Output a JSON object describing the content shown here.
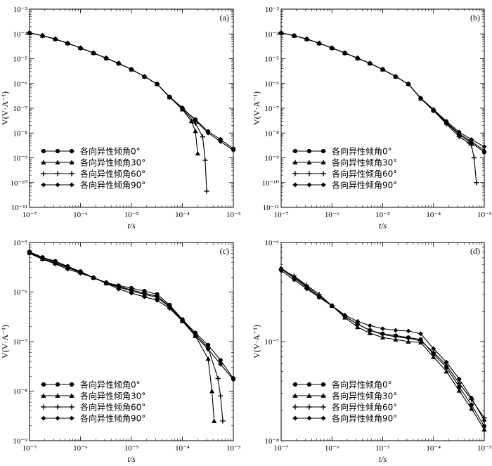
{
  "chart_data": [
    {
      "type": "line",
      "panel_label": "(a)",
      "xlabel": "t/s",
      "ylabel": "V(V·A⁻¹)",
      "xscale": "log",
      "yscale": "log",
      "xlim": [
        1e-07,
        0.001
      ],
      "ylim": [
        1e-11,
        0.001
      ],
      "x_ticks": [
        "10⁻⁷",
        "10⁻⁶",
        "10⁻⁵",
        "10⁻⁴",
        "10⁻³"
      ],
      "y_ticks": [
        "10⁻¹¹",
        "10⁻¹⁰",
        "10⁻⁹",
        "10⁻⁸",
        "10⁻⁷",
        "10⁻⁶",
        "10⁻⁵",
        "10⁻⁴",
        "10⁻³"
      ],
      "legend_position": "bottom-left",
      "series": [
        {
          "name": "各向异性倾角0°",
          "marker": "circle",
          "x": [
            1e-07,
            1.8e-07,
            3.2e-07,
            5.6e-07,
            1e-06,
            1.8e-06,
            3.2e-06,
            5.6e-06,
            1e-05,
            1.8e-05,
            3.2e-05,
            5.6e-05,
            0.0001,
            0.00018,
            0.00032,
            0.00056,
            0.001
          ],
          "y": [
            0.00011,
            8.5e-05,
            6.2e-05,
            4.2e-05,
            2.7e-05,
            1.7e-05,
            1.05e-05,
            6.5e-06,
            3.7e-06,
            1.9e-06,
            9.5e-07,
            2.9e-07,
            1e-07,
            3.5e-08,
            1.15e-08,
            5.5e-09,
            2.3e-09
          ]
        },
        {
          "name": "各向异性倾角30°",
          "marker": "triangle",
          "x": [
            1e-07,
            1.8e-07,
            3.2e-07,
            5.6e-07,
            1e-06,
            1.8e-06,
            3.2e-06,
            5.6e-06,
            1e-05,
            1.8e-05,
            3.2e-05,
            5.6e-05,
            0.0001,
            0.00015,
            0.00018,
            0.0002
          ],
          "y": [
            0.00011,
            8.5e-05,
            6.2e-05,
            4.2e-05,
            2.7e-05,
            1.7e-05,
            1.05e-05,
            6.5e-06,
            3.7e-06,
            1.9e-06,
            9.5e-07,
            2.8e-07,
            9e-08,
            3e-08,
            1.2e-08,
            1.5e-09
          ]
        },
        {
          "name": "各向异性倾角60°",
          "marker": "plus",
          "x": [
            1e-07,
            1.8e-07,
            3.2e-07,
            5.6e-07,
            1e-06,
            1.8e-06,
            3.2e-06,
            5.6e-06,
            1e-05,
            1.8e-05,
            3.2e-05,
            5.6e-05,
            0.0001,
            0.00018,
            0.00025,
            0.00028,
            0.0003
          ],
          "y": [
            0.00011,
            8.5e-05,
            6.2e-05,
            4.2e-05,
            2.7e-05,
            1.7e-05,
            1.05e-05,
            6.5e-06,
            3.7e-06,
            1.9e-06,
            9.5e-07,
            2.8e-07,
            9.5e-08,
            2.5e-08,
            7e-09,
            8e-10,
            4.5e-11
          ]
        },
        {
          "name": "各向异性倾角90°",
          "marker": "diamond",
          "x": [
            1e-07,
            1.8e-07,
            3.2e-07,
            5.6e-07,
            1e-06,
            1.8e-06,
            3.2e-06,
            5.6e-06,
            1e-05,
            1.8e-05,
            3.2e-05,
            5.6e-05,
            0.0001,
            0.00018,
            0.00032,
            0.00056,
            0.001
          ],
          "y": [
            0.00011,
            8.5e-05,
            6.2e-05,
            4.2e-05,
            2.7e-05,
            1.7e-05,
            1.05e-05,
            6.5e-06,
            3.7e-06,
            1.9e-06,
            9.5e-07,
            2.9e-07,
            1.05e-07,
            3.2e-08,
            1e-08,
            4.5e-09,
            2e-09
          ]
        }
      ]
    },
    {
      "type": "line",
      "panel_label": "(b)",
      "xlabel": "t/s",
      "ylabel": "V(V·A⁻¹)",
      "xscale": "log",
      "yscale": "log",
      "xlim": [
        1e-07,
        0.001
      ],
      "ylim": [
        1e-11,
        0.001
      ],
      "x_ticks": [
        "10⁻⁷",
        "10⁻⁶",
        "10⁻⁵",
        "10⁻⁴",
        "10⁻³"
      ],
      "y_ticks": [
        "10⁻¹¹",
        "10⁻¹⁰",
        "10⁻⁹",
        "10⁻⁸",
        "10⁻⁷",
        "10⁻⁶",
        "10⁻⁵",
        "10⁻⁴",
        "10⁻³"
      ],
      "legend_position": "bottom-left",
      "series": [
        {
          "name": "各向异性倾角0°",
          "marker": "circle",
          "x": [
            1e-07,
            1.8e-07,
            3.2e-07,
            5.6e-07,
            1e-06,
            1.8e-06,
            3.2e-06,
            5.6e-06,
            1e-05,
            1.8e-05,
            3.2e-05,
            5.6e-05,
            0.0001,
            0.00018,
            0.00032,
            0.00056,
            0.001
          ],
          "y": [
            0.00011,
            8.5e-05,
            6.2e-05,
            4.2e-05,
            2.7e-05,
            1.7e-05,
            1.05e-05,
            6.5e-06,
            3.7e-06,
            1.9e-06,
            9.5e-07,
            2.5e-07,
            8e-08,
            2.5e-08,
            8.5e-09,
            4e-09,
            1.7e-09
          ]
        },
        {
          "name": "各向异性倾角30°",
          "marker": "triangle",
          "x": [
            1e-07,
            1.8e-07,
            3.2e-07,
            5.6e-07,
            1e-06,
            1.8e-06,
            3.2e-06,
            5.6e-06,
            1e-05,
            1.8e-05,
            3.2e-05,
            5.6e-05,
            0.0001,
            0.00018,
            0.00032,
            0.00056,
            0.001
          ],
          "y": [
            0.00011,
            8.5e-05,
            6.2e-05,
            4.2e-05,
            2.7e-05,
            1.7e-05,
            1.05e-05,
            6.5e-06,
            3.7e-06,
            1.9e-06,
            9.5e-07,
            2.5e-07,
            8.5e-08,
            2.7e-08,
            9.5e-09,
            4.5e-09,
            2e-09
          ]
        },
        {
          "name": "各向异性倾角60°",
          "marker": "plus",
          "x": [
            1e-07,
            1.8e-07,
            3.2e-07,
            5.6e-07,
            1e-06,
            1.8e-06,
            3.2e-06,
            5.6e-06,
            1e-05,
            1.8e-05,
            3.2e-05,
            5.6e-05,
            0.0001,
            0.00018,
            0.00032,
            0.0005,
            0.00056,
            0.00063,
            0.0007
          ],
          "y": [
            0.00011,
            8.5e-05,
            6.2e-05,
            4.2e-05,
            2.7e-05,
            1.7e-05,
            1.05e-05,
            6.5e-06,
            3.7e-06,
            1.9e-06,
            9.5e-07,
            2.5e-07,
            8e-08,
            2.3e-08,
            7e-09,
            4e-09,
            3.2e-09,
            1e-09,
            1e-10
          ]
        },
        {
          "name": "各向异性倾角90°",
          "marker": "diamond",
          "x": [
            1e-07,
            1.8e-07,
            3.2e-07,
            5.6e-07,
            1e-06,
            1.8e-06,
            3.2e-06,
            5.6e-06,
            1e-05,
            1.8e-05,
            3.2e-05,
            5.6e-05,
            0.0001,
            0.00018,
            0.00032,
            0.00056,
            0.001
          ],
          "y": [
            0.00011,
            8.5e-05,
            6.2e-05,
            4.2e-05,
            2.7e-05,
            1.7e-05,
            1.05e-05,
            6.5e-06,
            3.7e-06,
            1.9e-06,
            9.5e-07,
            2.6e-07,
            9e-08,
            3e-08,
            1.1e-08,
            5.5e-09,
            2.8e-09
          ]
        }
      ]
    },
    {
      "type": "line",
      "panel_label": "(c)",
      "xlabel": "t/s",
      "ylabel": "V(V·A⁻¹)",
      "xscale": "log",
      "yscale": "log",
      "xlim": [
        1e-07,
        0.001
      ],
      "ylim": [
        1e-09,
        1e-05
      ],
      "x_ticks": [
        "10⁻⁷",
        "10⁻⁶",
        "10⁻⁵",
        "10⁻⁴",
        "10⁻³"
      ],
      "y_ticks": [
        "10⁻⁹",
        "10⁻⁸",
        "10⁻⁷",
        "10⁻⁶",
        "10⁻⁵"
      ],
      "legend_position": "bottom-left",
      "series": [
        {
          "name": "各向异性倾角0°",
          "marker": "circle",
          "x": [
            1e-07,
            1.8e-07,
            3.2e-07,
            5.6e-07,
            1e-06,
            1.8e-06,
            3.2e-06,
            5.6e-06,
            1e-05,
            1.8e-05,
            3.2e-05,
            5.6e-05,
            0.0001,
            0.00018,
            0.00032,
            0.00056,
            0.001
          ],
          "y": [
            6.5e-06,
            5e-06,
            4.2e-06,
            3.3e-06,
            2.6e-06,
            1.95e-06,
            1.55e-06,
            1.35e-06,
            1.2e-06,
            1.05e-06,
            9e-07,
            5.5e-07,
            2.8e-07,
            1.5e-07,
            8.5e-08,
            4.2e-08,
            1.8e-08
          ]
        },
        {
          "name": "各向异性倾角30°",
          "marker": "triangle",
          "x": [
            1e-07,
            1.8e-07,
            3.2e-07,
            5.6e-07,
            1e-06,
            1.8e-06,
            3.2e-06,
            5.6e-06,
            1e-05,
            1.8e-05,
            3.2e-05,
            5.6e-05,
            0.0001,
            0.00018,
            0.00032,
            0.00038,
            0.00042
          ],
          "y": [
            6.2e-06,
            4.7e-06,
            3.8e-06,
            3.1e-06,
            2.5e-06,
            1.95e-06,
            1.5e-06,
            1.25e-06,
            1.05e-06,
            9e-07,
            7.8e-07,
            5e-07,
            2.6e-07,
            1.3e-07,
            4.5e-08,
            1e-08,
            2.5e-09
          ]
        },
        {
          "name": "各向异性倾角60°",
          "marker": "plus",
          "x": [
            1e-07,
            1.8e-07,
            3.2e-07,
            5.6e-07,
            1e-06,
            1.8e-06,
            3.2e-06,
            5.6e-06,
            1e-05,
            1.8e-05,
            3.2e-05,
            5.6e-05,
            0.0001,
            0.00018,
            0.00032,
            0.0005,
            0.00056,
            0.00062
          ],
          "y": [
            6.4e-06,
            4.9e-06,
            4e-06,
            3.2e-06,
            2.55e-06,
            1.95e-06,
            1.55e-06,
            1.3e-06,
            1.1e-06,
            9.5e-07,
            8.2e-07,
            5.2e-07,
            2.7e-07,
            1.4e-07,
            7.5e-08,
            1.8e-08,
            8e-09,
            2.5e-09
          ]
        },
        {
          "name": "各向异性倾角90°",
          "marker": "diamond",
          "x": [
            1e-07,
            1.8e-07,
            3.2e-07,
            5.6e-07,
            1e-06,
            1.8e-06,
            3.2e-06,
            5.6e-06,
            1e-05,
            1.8e-05,
            3.2e-05,
            5.6e-05,
            0.0001,
            0.00018,
            0.00032,
            0.00056,
            0.001
          ],
          "y": [
            6e-06,
            4.6e-06,
            3.7e-06,
            2.9e-06,
            2.4e-06,
            1.95e-06,
            1.5e-06,
            1.15e-06,
            9.5e-07,
            8e-07,
            6.8e-07,
            4.7e-07,
            2.6e-07,
            1.3e-07,
            7e-08,
            3.5e-08,
            1.7e-08
          ]
        }
      ]
    },
    {
      "type": "line",
      "panel_label": "(d)",
      "xlabel": "t/s",
      "ylabel": "V(V·A⁻¹)",
      "xscale": "log",
      "yscale": "log",
      "xlim": [
        1e-07,
        0.001
      ],
      "ylim": [
        1e-08,
        1e-06
      ],
      "x_ticks": [
        "10⁻⁷",
        "10⁻⁶",
        "10⁻⁵",
        "10⁻⁴",
        "10⁻³"
      ],
      "y_ticks": [
        "10⁻⁸",
        "10⁻⁷",
        "10⁻⁶"
      ],
      "legend_position": "bottom-left",
      "series": [
        {
          "name": "各向异性倾角0°",
          "marker": "circle",
          "x": [
            1e-07,
            1.8e-07,
            3.2e-07,
            5.6e-07,
            1e-06,
            1.8e-06,
            3.2e-06,
            5.6e-06,
            1e-05,
            1.8e-05,
            3.2e-05,
            5.6e-05,
            0.0001,
            0.00018,
            0.00032,
            0.00056,
            0.001
          ],
          "y": [
            5.4e-07,
            4.4e-07,
            3.5e-07,
            2.8e-07,
            2.3e-07,
            1.8e-07,
            1.5e-07,
            1.3e-07,
            1.2e-07,
            1.15e-07,
            1.1e-07,
            1.05e-07,
            7.5e-08,
            5.5e-08,
            3.5e-08,
            2.3e-08,
            1.4e-08
          ]
        },
        {
          "name": "各向异性倾角30°",
          "marker": "triangle",
          "x": [
            1e-07,
            1.8e-07,
            3.2e-07,
            5.6e-07,
            1e-06,
            1.8e-06,
            3.2e-06,
            5.6e-06,
            1e-05,
            1.8e-05,
            3.2e-05,
            5.6e-05,
            0.0001,
            0.00018,
            0.00032,
            0.00056,
            0.001
          ],
          "y": [
            5.5e-07,
            4.5e-07,
            3.6e-07,
            2.9e-07,
            2.3e-07,
            1.75e-07,
            1.4e-07,
            1.22e-07,
            1.1e-07,
            1.05e-07,
            1e-07,
            9.8e-08,
            7e-08,
            5e-08,
            3.2e-08,
            2.1e-08,
            1.3e-08
          ]
        },
        {
          "name": "各向异性倾角60°",
          "marker": "plus",
          "x": [
            1e-07,
            1.8e-07,
            3.2e-07,
            5.6e-07,
            1e-06,
            1.8e-06,
            3.2e-06,
            5.6e-06,
            1e-05,
            1.8e-05,
            3.2e-05,
            5.6e-05,
            0.0001,
            0.00018,
            0.00032,
            0.00056,
            0.001
          ],
          "y": [
            5.3e-07,
            4.6e-07,
            3.7e-07,
            3e-07,
            2.3e-07,
            1.8e-07,
            1.5e-07,
            1.3e-07,
            1.18e-07,
            1.12e-07,
            1.08e-07,
            1.02e-07,
            7.8e-08,
            5.8e-08,
            3.8e-08,
            2.6e-08,
            1.7e-08
          ]
        },
        {
          "name": "各向异性倾角90°",
          "marker": "diamond",
          "x": [
            1e-07,
            1.8e-07,
            3.2e-07,
            5.6e-07,
            1e-06,
            1.8e-06,
            3.2e-06,
            5.6e-06,
            1e-05,
            1.8e-05,
            3.2e-05,
            5.6e-05,
            0.0001,
            0.00018,
            0.00032,
            0.00056,
            0.001
          ],
          "y": [
            5.2e-07,
            4.2e-07,
            3.4e-07,
            2.8e-07,
            2.3e-07,
            1.85e-07,
            1.6e-07,
            1.45e-07,
            1.35e-07,
            1.3e-07,
            1.28e-07,
            1.2e-07,
            8.5e-08,
            6.2e-08,
            4.2e-08,
            2.7e-08,
            1.6e-08
          ]
        }
      ]
    }
  ]
}
